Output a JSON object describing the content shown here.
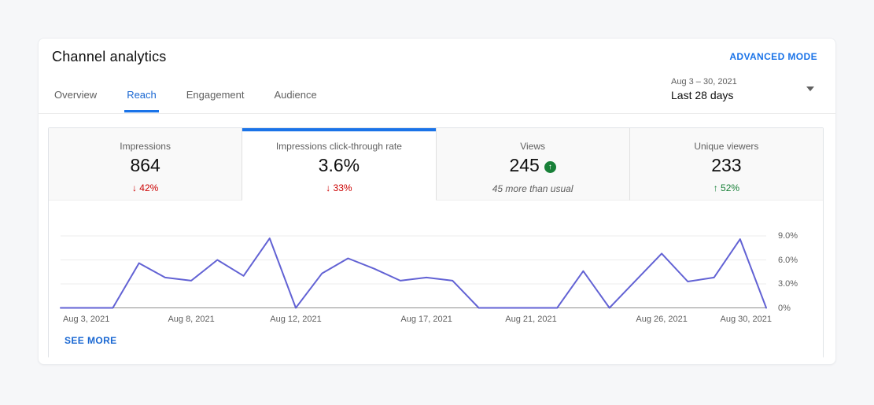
{
  "header": {
    "title": "Channel analytics",
    "advanced_mode_label": "ADVANCED MODE"
  },
  "tabs": [
    {
      "label": "Overview",
      "active": false
    },
    {
      "label": "Reach",
      "active": true
    },
    {
      "label": "Engagement",
      "active": false
    },
    {
      "label": "Audience",
      "active": false
    }
  ],
  "date_picker": {
    "range": "Aug 3 – 30, 2021",
    "preset": "Last 28 days",
    "icon": "caret-down-icon"
  },
  "metrics": [
    {
      "label": "Impressions",
      "value": "864",
      "delta_icon": "down-arrow-icon",
      "delta_arrow": "↓",
      "delta_text": "42%",
      "trend": "down",
      "active": false
    },
    {
      "label": "Impressions click-through rate",
      "value": "3.6%",
      "delta_icon": "down-arrow-icon",
      "delta_arrow": "↓",
      "delta_text": "33%",
      "trend": "down",
      "active": true
    },
    {
      "label": "Views",
      "value": "245",
      "badge_icon": "up-arrow-circle-icon",
      "badge_arrow": "↑",
      "subtitle": "45 more than usual",
      "active": false
    },
    {
      "label": "Unique viewers",
      "value": "233",
      "delta_icon": "up-arrow-icon",
      "delta_arrow": "↑",
      "delta_text": "52%",
      "trend": "up",
      "active": false
    }
  ],
  "see_more_label": "SEE MORE",
  "chart_data": {
    "type": "line",
    "title": "Impressions click-through rate",
    "dates": [
      "2021-08-03",
      "2021-08-04",
      "2021-08-05",
      "2021-08-06",
      "2021-08-07",
      "2021-08-08",
      "2021-08-09",
      "2021-08-10",
      "2021-08-11",
      "2021-08-12",
      "2021-08-13",
      "2021-08-14",
      "2021-08-15",
      "2021-08-16",
      "2021-08-17",
      "2021-08-18",
      "2021-08-19",
      "2021-08-20",
      "2021-08-21",
      "2021-08-22",
      "2021-08-23",
      "2021-08-24",
      "2021-08-25",
      "2021-08-26",
      "2021-08-27",
      "2021-08-28",
      "2021-08-29",
      "2021-08-30"
    ],
    "values": [
      0,
      0,
      0,
      5.6,
      3.8,
      3.4,
      6.0,
      4.0,
      8.7,
      0,
      4.3,
      6.2,
      4.9,
      3.4,
      3.8,
      3.4,
      0,
      0,
      0,
      0,
      4.6,
      0,
      3.4,
      6.8,
      3.3,
      3.8,
      8.6,
      0
    ],
    "unit": "%",
    "ylim": [
      0,
      9.6
    ],
    "grid": true,
    "legend": "none",
    "y_axis": {
      "max": 9,
      "values": [
        0,
        3,
        6,
        9
      ],
      "labels": [
        "0%",
        "3.0%",
        "6.0%",
        "9.0%"
      ],
      "position": "right"
    },
    "x_ticks": [
      {
        "day": 0,
        "label": "Aug 3, 2021"
      },
      {
        "day": 5,
        "label": "Aug 8, 2021"
      },
      {
        "day": 9,
        "label": "Aug 12, 2021"
      },
      {
        "day": 14,
        "label": "Aug 17, 2021"
      },
      {
        "day": 18,
        "label": "Aug 21, 2021"
      },
      {
        "day": 23,
        "label": "Aug 26, 2021"
      },
      {
        "day": 27,
        "label": "Aug 30, 2021"
      }
    ],
    "line_color": "#6262d4",
    "grid_color": "#ececec",
    "baseline_color": "#8f8f8f"
  },
  "colors": {
    "accent_blue": "#1a73e8",
    "link_blue": "#1967d2",
    "negative_red": "#cc0000",
    "positive_green": "#188038",
    "text_secondary": "#606060"
  }
}
